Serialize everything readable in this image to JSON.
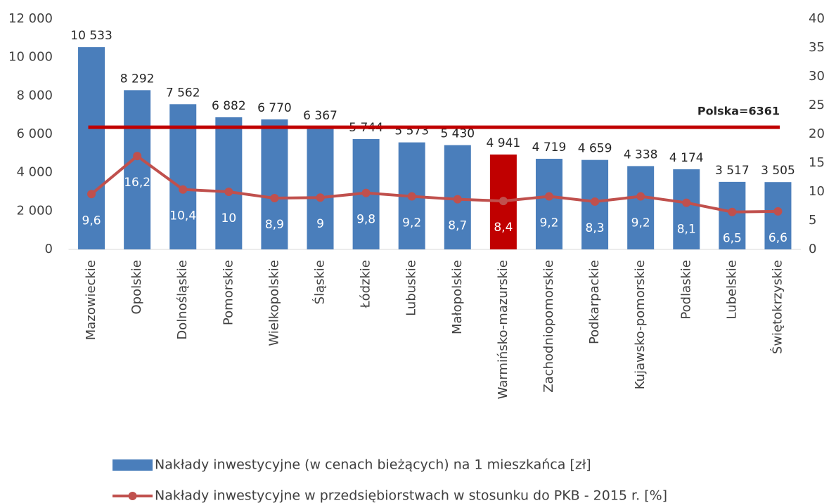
{
  "chart_data": {
    "type": "bar",
    "categories": [
      "Mazowieckie",
      "Opolskie",
      "Dolnośląskie",
      "Pomorskie",
      "Wielkopolskie",
      "Śląskie",
      "Łódzkie",
      "Lubuskie",
      "Małopolskie",
      "Warmińsko-mazurskie",
      "Zachodniopomorskie",
      "Podkarpackie",
      "Kujawsko-pomorskie",
      "Podlaskie",
      "Lubelskie",
      "Świętokrzyskie"
    ],
    "series": [
      {
        "name": "Nakłady inwestycyjne (w cenach bieżących) na 1 mieszkańca [zł]",
        "type": "bar",
        "colors": [
          "#4a7ebb",
          "#4a7ebb",
          "#4a7ebb",
          "#4a7ebb",
          "#4a7ebb",
          "#4a7ebb",
          "#4a7ebb",
          "#4a7ebb",
          "#4a7ebb",
          "#c00000",
          "#4a7ebb",
          "#4a7ebb",
          "#4a7ebb",
          "#4a7ebb",
          "#4a7ebb",
          "#4a7ebb"
        ],
        "color": "#4a7ebb",
        "values": [
          10533,
          8292,
          7562,
          6882,
          6770,
          6367,
          5744,
          5573,
          5430,
          4941,
          4719,
          4659,
          4338,
          4174,
          3517,
          3505
        ],
        "value_labels": [
          "10 533",
          "8 292",
          "7 562",
          "6 882",
          "6 770",
          "6 367",
          "5 744",
          "5 573",
          "5 430",
          "4 941",
          "4 719",
          "4 659",
          "4 338",
          "4 174",
          "3 517",
          "3 505"
        ]
      },
      {
        "name": "Nakłady inwestycyjne w przedsiębiorstwach w stosunku do PKB - 2015 r. [%]",
        "type": "line",
        "axis": "y2",
        "color": "#c0504d",
        "values": [
          9.6,
          16.2,
          10.4,
          10,
          8.9,
          9,
          9.8,
          9.2,
          8.7,
          8.4,
          9.2,
          8.3,
          9.2,
          8.1,
          6.5,
          6.6
        ],
        "value_labels": [
          "9,6",
          "16,2",
          "10,4",
          "10",
          "8,9",
          "9",
          "9,8",
          "9,2",
          "8,7",
          "8,4",
          "9,2",
          "8,3",
          "9,2",
          "8,1",
          "6,5",
          "6,6"
        ]
      }
    ],
    "reference_line": {
      "label": "Polska=6361",
      "value": 6361,
      "color": "#c00000"
    },
    "ylim": [
      0,
      12000
    ],
    "yticks": [
      0,
      {
        "value": 2000,
        "label": "2 000"
      },
      {
        "value": 4000,
        "label": "4 000"
      },
      {
        "value": 6000,
        "label": "6 000"
      },
      {
        "value": 8000,
        "label": "8 000"
      },
      {
        "value": 10000,
        "label": "10 000"
      },
      {
        "value": 12000,
        "label": "12 000"
      }
    ],
    "y2lim": [
      0,
      40
    ],
    "y2ticks": [
      0,
      5,
      10,
      15,
      20,
      25,
      30,
      35,
      40
    ],
    "legend": "bottom"
  }
}
